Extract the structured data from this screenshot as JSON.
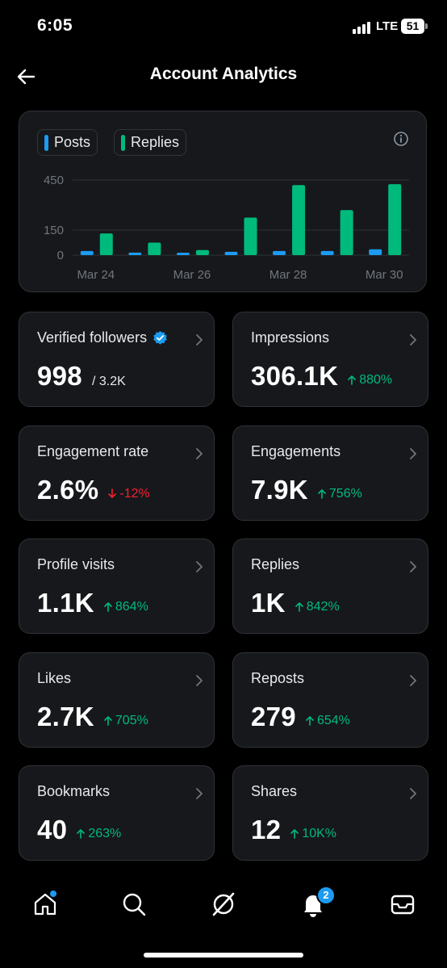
{
  "status_bar": {
    "time": "6:05",
    "network": "LTE",
    "battery": "51"
  },
  "header": {
    "title": "Account Analytics"
  },
  "chart": {
    "legend": [
      {
        "label": "Posts",
        "color": "#1d9bf0"
      },
      {
        "label": "Replies",
        "color": "#00ba7c"
      }
    ]
  },
  "chart_data": {
    "type": "bar",
    "categories": [
      "Mar 24",
      "Mar 25",
      "Mar 26",
      "Mar 27",
      "Mar 28",
      "Mar 29",
      "Mar 30"
    ],
    "x_tick_labels": [
      "Mar 24",
      "Mar 26",
      "Mar 28",
      "Mar 30"
    ],
    "y_ticks": [
      "450",
      "150",
      "0"
    ],
    "y_tick_values": [
      450,
      150,
      0
    ],
    "ylim": [
      0,
      480
    ],
    "grid": true,
    "legend_position": "top-left",
    "series": [
      {
        "name": "Posts",
        "color": "#1d9bf0",
        "values": [
          25,
          15,
          5,
          20,
          25,
          25,
          35
        ]
      },
      {
        "name": "Replies",
        "color": "#00ba7c",
        "values": [
          130,
          75,
          30,
          225,
          420,
          270,
          425
        ]
      }
    ]
  },
  "stats": [
    {
      "label": "Verified followers",
      "value": "998",
      "sub": "/ 3.2K",
      "verified": true
    },
    {
      "label": "Impressions",
      "value": "306.1K",
      "delta": "880%",
      "direction": "up"
    },
    {
      "label": "Engagement rate",
      "value": "2.6%",
      "delta": "-12%",
      "direction": "down"
    },
    {
      "label": "Engagements",
      "value": "7.9K",
      "delta": "756%",
      "direction": "up"
    },
    {
      "label": "Profile visits",
      "value": "1.1K",
      "delta": "864%",
      "direction": "up"
    },
    {
      "label": "Replies",
      "value": "1K",
      "delta": "842%",
      "direction": "up"
    },
    {
      "label": "Likes",
      "value": "2.7K",
      "delta": "705%",
      "direction": "up"
    },
    {
      "label": "Reposts",
      "value": "279",
      "delta": "654%",
      "direction": "up"
    },
    {
      "label": "Bookmarks",
      "value": "40",
      "delta": "263%",
      "direction": "up"
    },
    {
      "label": "Shares",
      "value": "12",
      "delta": "10K%",
      "direction": "up"
    }
  ],
  "colors": {
    "up": "#00ba7c",
    "down": "#f4212e",
    "accent": "#1d9bf0"
  },
  "bottom_nav": {
    "items": [
      "home-icon",
      "search-icon",
      "grok-icon",
      "notifications-icon",
      "messages-icon"
    ],
    "notifications_badge": "2"
  }
}
